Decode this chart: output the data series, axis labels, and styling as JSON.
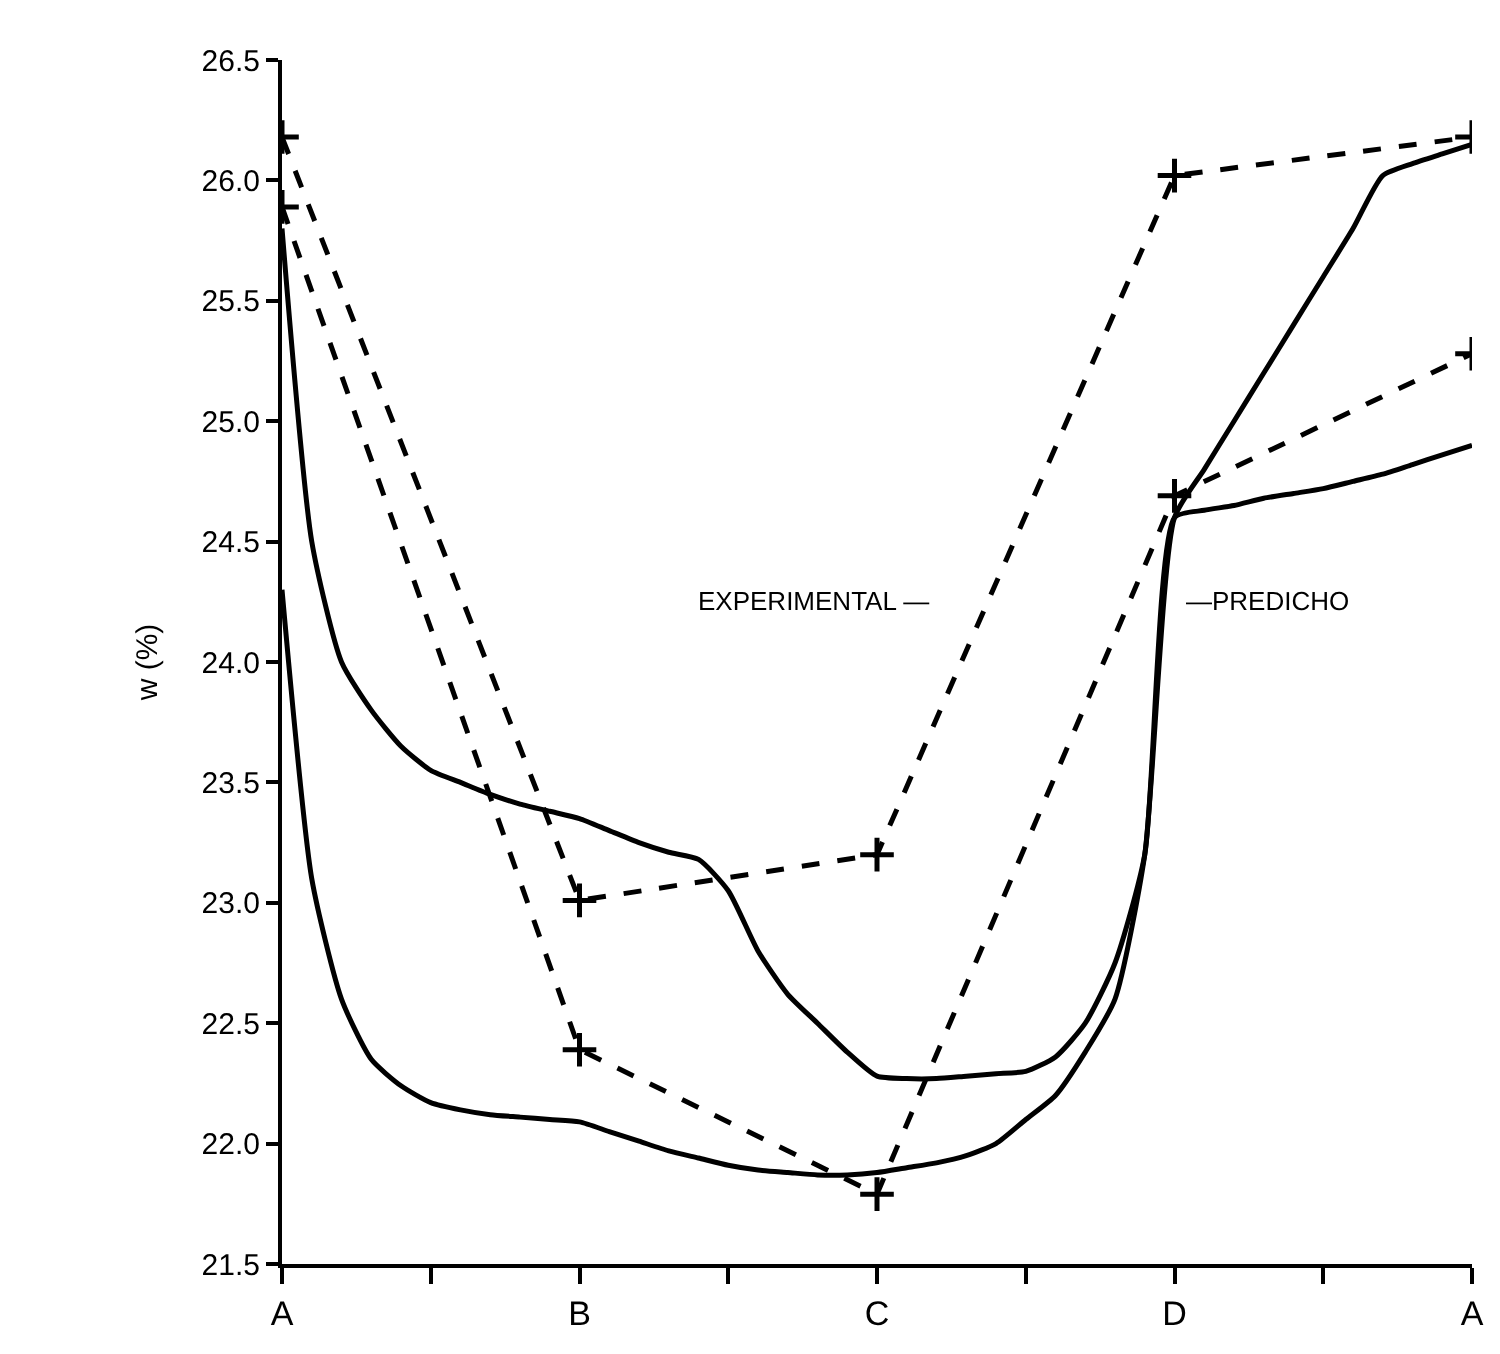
{
  "chart_data": {
    "type": "line",
    "ylabel": "w (%)",
    "categories": [
      "A",
      null,
      null,
      null,
      null,
      null,
      null,
      null,
      null,
      null,
      "B",
      null,
      null,
      null,
      null,
      null,
      null,
      null,
      null,
      null,
      "C",
      null,
      null,
      null,
      null,
      null,
      null,
      null,
      null,
      null,
      "D",
      null,
      null,
      null,
      null,
      null,
      null,
      null,
      null,
      null,
      "A"
    ],
    "ylim": [
      21.5,
      26.5
    ],
    "yticks": [
      21.5,
      {
        "value": 22,
        "label": "22.0"
      },
      22.5,
      {
        "value": 23,
        "label": "23.0"
      },
      23.5,
      {
        "value": 24,
        "label": "24.0"
      },
      24.5,
      {
        "value": 25,
        "label": "25.0"
      },
      25.5,
      {
        "value": 26,
        "label": "26.0"
      },
      26.5
    ],
    "series": [
      {
        "color": "#000000",
        "line_style": "dashed",
        "marker": "cross",
        "values": [
          26.18,
          null,
          null,
          null,
          null,
          null,
          null,
          null,
          null,
          null,
          23.01,
          null,
          null,
          null,
          null,
          null,
          null,
          null,
          null,
          null,
          23.2,
          null,
          null,
          null,
          null,
          null,
          null,
          null,
          null,
          null,
          26.02,
          null,
          null,
          null,
          null,
          null,
          null,
          null,
          null,
          null,
          26.18
        ]
      },
      {
        "color": "#000000",
        "line_style": "dashed",
        "marker": "cross",
        "values": [
          25.89,
          null,
          null,
          null,
          null,
          null,
          null,
          null,
          null,
          null,
          22.39,
          null,
          null,
          null,
          null,
          null,
          null,
          null,
          null,
          null,
          21.79,
          null,
          null,
          null,
          null,
          null,
          null,
          null,
          null,
          null,
          24.69,
          null,
          null,
          null,
          null,
          null,
          null,
          null,
          null,
          null,
          25.28
        ]
      },
      {
        "color": "#000000",
        "line_style": "solid",
        "marker": "none",
        "values": [
          25.8,
          24.5,
          24.0,
          23.8,
          23.65,
          23.55,
          23.5,
          23.45,
          23.41,
          23.38,
          23.35,
          23.3,
          23.25,
          23.21,
          23.18,
          23.05,
          22.8,
          22.62,
          22.5,
          22.38,
          22.28,
          22.27,
          22.27,
          22.28,
          22.29,
          22.3,
          22.36,
          22.5,
          22.75,
          23.2,
          24.6,
          24.63,
          24.65,
          24.68,
          24.7,
          24.72,
          24.75,
          24.78,
          24.82,
          24.86,
          24.9
        ]
      },
      {
        "color": "#000000",
        "line_style": "solid",
        "marker": "none",
        "values": [
          24.3,
          23.1,
          22.6,
          22.35,
          22.24,
          22.17,
          22.14,
          22.12,
          22.11,
          22.1,
          22.09,
          22.05,
          22.01,
          21.97,
          21.94,
          21.91,
          21.89,
          21.88,
          21.87,
          21.87,
          21.88,
          21.9,
          21.92,
          21.95,
          22.0,
          22.1,
          22.2,
          22.38,
          22.6,
          23.2,
          24.6,
          24.8,
          25.0,
          25.2,
          25.4,
          25.6,
          25.8,
          26.02,
          26.07,
          26.11,
          26.15
        ]
      }
    ],
    "annotations": [
      "EXPERIMENTAL —",
      "—PREDICHO"
    ]
  }
}
